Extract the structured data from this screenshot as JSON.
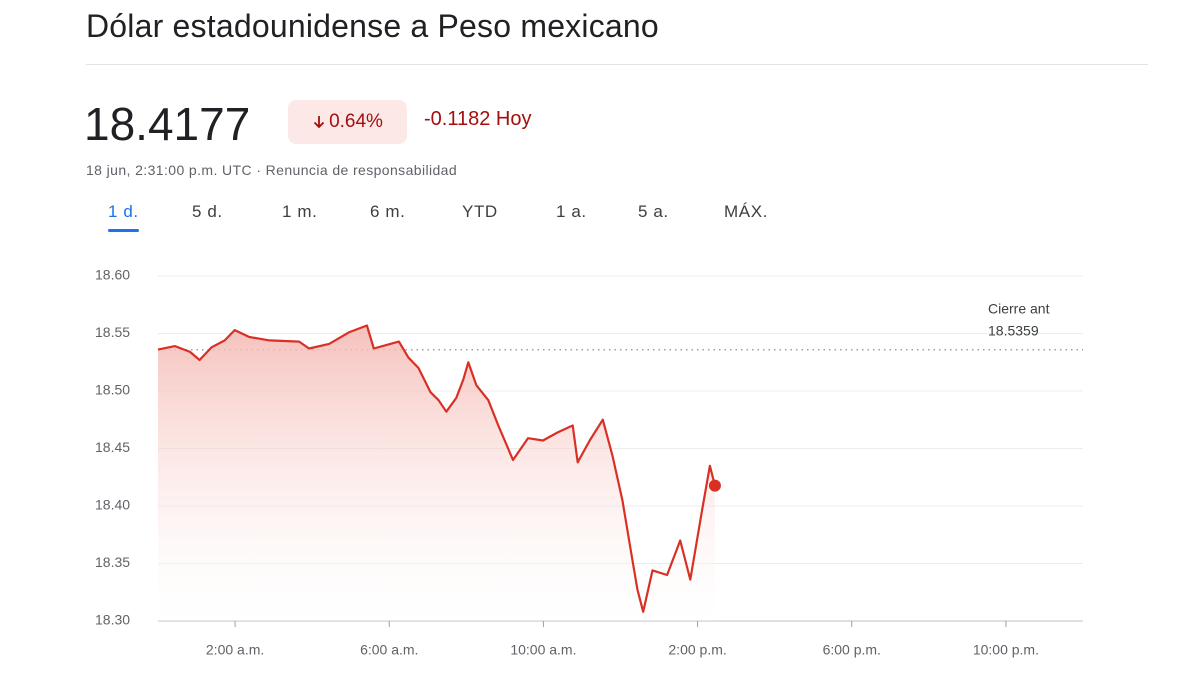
{
  "header": {
    "title": "Dólar estadounidense a Peso mexicano",
    "price": "18.4177",
    "change_percent": "0.64%",
    "change": "-0.1182",
    "change_period": "Hoy",
    "timestamp": "18 jun, 2:31:00 p.m. UTC",
    "separator": "·",
    "disclaimer": "Renuncia de responsabilidad"
  },
  "tabs": [
    "1 d.",
    "5 d.",
    "1 m.",
    "6 m.",
    "YTD",
    "1 a.",
    "5 a.",
    "MÁX."
  ],
  "chart_data": {
    "type": "line",
    "x": [
      0,
      0.44,
      0.83,
      1.08,
      1.39,
      1.73,
      1.99,
      2.37,
      2.89,
      3.66,
      3.92,
      4.44,
      4.95,
      5.42,
      5.6,
      6.25,
      6.5,
      6.76,
      7.07,
      7.28,
      7.48,
      7.74,
      7.92,
      8.05,
      8.26,
      8.57,
      8.83,
      9.21,
      9.6,
      9.99,
      10.37,
      10.76,
      10.89,
      11.2,
      11.54,
      11.79,
      12.05,
      12.31,
      12.44,
      12.59,
      12.83,
      13.21,
      13.55,
      13.81,
      14.12,
      14.32,
      14.45
    ],
    "series": [
      {
        "color": "#d93025",
        "values": [
          18.536,
          18.539,
          18.534,
          18.527,
          18.538,
          18.544,
          18.553,
          18.547,
          18.544,
          18.543,
          18.537,
          18.541,
          18.551,
          18.557,
          18.537,
          18.543,
          18.529,
          18.52,
          18.499,
          18.492,
          18.482,
          18.494,
          18.51,
          18.525,
          18.505,
          18.492,
          18.47,
          18.44,
          18.459,
          18.457,
          18.464,
          18.47,
          18.438,
          18.457,
          18.475,
          18.444,
          18.405,
          18.353,
          18.327,
          18.308,
          18.344,
          18.34,
          18.37,
          18.336,
          18.397,
          18.435,
          18.4177
        ]
      }
    ],
    "xlim": [
      0,
      24
    ],
    "xticks": [
      {
        "value": 2,
        "label": "2:00 a.m."
      },
      {
        "value": 6,
        "label": "6:00 a.m."
      },
      {
        "value": 10,
        "label": "10:00 a.m."
      },
      {
        "value": 14,
        "label": "2:00 p.m."
      },
      {
        "value": 18,
        "label": "6:00 p.m."
      },
      {
        "value": 22,
        "label": "10:00 p.m."
      }
    ],
    "ylim": [
      18.3,
      18.6
    ],
    "yticks": [
      {
        "value": 18.3,
        "label": "18.30"
      },
      18.35,
      {
        "value": 18.4,
        "label": "18.40"
      },
      18.45,
      {
        "value": 18.5,
        "label": "18.50"
      },
      18.55,
      {
        "value": 18.6,
        "label": "18.60"
      }
    ],
    "reference": {
      "label": "Cierre ant",
      "value": 18.5359
    },
    "grid": true
  }
}
